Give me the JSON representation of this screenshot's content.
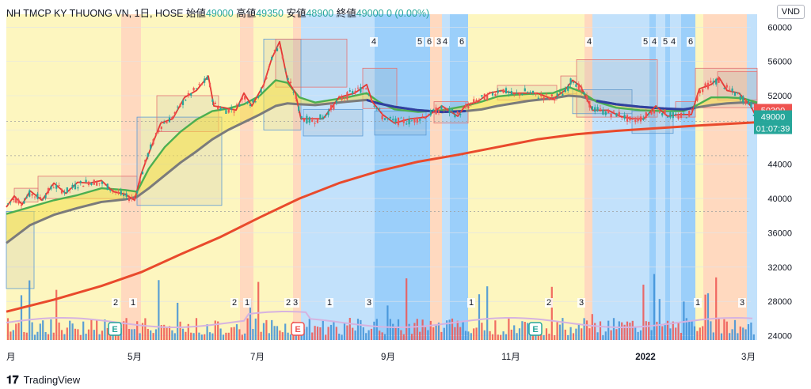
{
  "header": {
    "symbol": "NH TMCP KY THUONG VN, 1日, HOSE",
    "open_label": "始値",
    "open": "49000",
    "high_label": "高値",
    "high": "49350",
    "low_label": "安値",
    "low": "48900",
    "close_label": "終値",
    "close": "49000",
    "change": "0 (0.00%)"
  },
  "currency": "VND",
  "branding": "TradingView",
  "colors": {
    "up": "#26a69a",
    "down": "#ef5350",
    "yellow": "#fdf5b8",
    "blue": "#bbdefb",
    "blue_dark": "#90caf9",
    "orange": "#ffd5b8",
    "ema5": "#e53935",
    "ema20": "#4caf50",
    "ema50": "#2f3fa0",
    "ema200": "#e94a2c",
    "bb_label": "#ef5350",
    "price_label": "#26a69a"
  },
  "chart_data": {
    "type": "line",
    "title": "",
    "yaxis": {
      "ticks": [
        24000,
        28000,
        32000,
        36000,
        40000,
        44000,
        48000,
        52000,
        56000,
        60000
      ],
      "range": [
        23500,
        61500
      ]
    },
    "xaxis": {
      "ticks": [
        "月",
        "5月",
        "7月",
        "9月",
        "11月",
        "2022",
        "3月"
      ]
    },
    "price_labels": [
      {
        "text": "50300",
        "kind": "down"
      },
      {
        "text": "49000",
        "kind": "up"
      },
      {
        "text": "01:07:39",
        "kind": "up"
      }
    ],
    "series": [
      {
        "key": "price",
        "points": [
          [
            0,
            39200
          ],
          [
            10,
            40000
          ],
          [
            20,
            39500
          ],
          [
            30,
            40600
          ],
          [
            45,
            40000
          ],
          [
            60,
            41500
          ],
          [
            75,
            40800
          ],
          [
            90,
            41600
          ],
          [
            105,
            42000
          ],
          [
            120,
            41800
          ],
          [
            135,
            41000
          ],
          [
            150,
            40200
          ],
          [
            162,
            40000
          ],
          [
            170,
            42500
          ],
          [
            180,
            45500
          ],
          [
            195,
            48500
          ],
          [
            210,
            49500
          ],
          [
            225,
            51500
          ],
          [
            240,
            52800
          ],
          [
            255,
            54000
          ],
          [
            262,
            51000
          ],
          [
            275,
            50300
          ],
          [
            290,
            50500
          ],
          [
            300,
            52000
          ],
          [
            310,
            51000
          ],
          [
            325,
            53000
          ],
          [
            335,
            56500
          ],
          [
            345,
            58000
          ],
          [
            355,
            54000
          ],
          [
            365,
            52000
          ],
          [
            372,
            49500
          ],
          [
            385,
            49000
          ],
          [
            400,
            49500
          ],
          [
            420,
            51500
          ],
          [
            440,
            52500
          ],
          [
            455,
            53000
          ],
          [
            462,
            51500
          ],
          [
            475,
            49500
          ],
          [
            490,
            49000
          ],
          [
            510,
            49000
          ],
          [
            530,
            49700
          ],
          [
            550,
            50500
          ],
          [
            570,
            49800
          ],
          [
            580,
            50600
          ],
          [
            595,
            51500
          ],
          [
            610,
            52000
          ],
          [
            625,
            52800
          ],
          [
            640,
            52000
          ],
          [
            655,
            52500
          ],
          [
            670,
            52000
          ],
          [
            690,
            51800
          ],
          [
            705,
            52300
          ],
          [
            715,
            54000
          ],
          [
            725,
            52800
          ],
          [
            740,
            50500
          ],
          [
            760,
            50000
          ],
          [
            775,
            49800
          ],
          [
            790,
            49000
          ],
          [
            805,
            49500
          ],
          [
            820,
            50500
          ],
          [
            835,
            49800
          ],
          [
            850,
            49500
          ],
          [
            865,
            50000
          ],
          [
            875,
            52500
          ],
          [
            890,
            53500
          ],
          [
            900,
            53800
          ],
          [
            910,
            52800
          ],
          [
            925,
            52000
          ],
          [
            940,
            51000
          ],
          [
            948,
            49000
          ]
        ]
      },
      {
        "key": "ema20",
        "points": [
          [
            0,
            38200
          ],
          [
            30,
            39000
          ],
          [
            60,
            39800
          ],
          [
            90,
            40400
          ],
          [
            120,
            41200
          ],
          [
            150,
            41000
          ],
          [
            165,
            40800
          ],
          [
            180,
            43500
          ],
          [
            200,
            46000
          ],
          [
            220,
            47800
          ],
          [
            240,
            49200
          ],
          [
            260,
            50200
          ],
          [
            280,
            50500
          ],
          [
            300,
            51000
          ],
          [
            320,
            52000
          ],
          [
            340,
            53800
          ],
          [
            355,
            53500
          ],
          [
            370,
            51800
          ],
          [
            390,
            51200
          ],
          [
            410,
            51500
          ],
          [
            430,
            51800
          ],
          [
            455,
            52300
          ],
          [
            470,
            51300
          ],
          [
            490,
            50400
          ],
          [
            520,
            50100
          ],
          [
            550,
            50300
          ],
          [
            580,
            50800
          ],
          [
            600,
            51300
          ],
          [
            620,
            51900
          ],
          [
            640,
            52100
          ],
          [
            660,
            52200
          ],
          [
            690,
            52300
          ],
          [
            710,
            53000
          ],
          [
            725,
            52500
          ],
          [
            745,
            51300
          ],
          [
            770,
            50600
          ],
          [
            800,
            50300
          ],
          [
            830,
            50200
          ],
          [
            855,
            50200
          ],
          [
            870,
            50800
          ],
          [
            890,
            51800
          ],
          [
            910,
            51800
          ],
          [
            930,
            51700
          ],
          [
            948,
            51200
          ]
        ]
      },
      {
        "key": "ema50",
        "points": [
          [
            0,
            34800
          ],
          [
            30,
            36900
          ],
          [
            60,
            38100
          ],
          [
            90,
            38900
          ],
          [
            120,
            39600
          ],
          [
            150,
            39900
          ],
          [
            165,
            40200
          ],
          [
            180,
            41200
          ],
          [
            200,
            42700
          ],
          [
            220,
            44200
          ],
          [
            240,
            45500
          ],
          [
            260,
            46900
          ],
          [
            280,
            48000
          ],
          [
            300,
            48900
          ],
          [
            320,
            49800
          ],
          [
            340,
            50800
          ],
          [
            355,
            51100
          ],
          [
            370,
            51000
          ],
          [
            390,
            50900
          ],
          [
            410,
            51100
          ],
          [
            430,
            51300
          ],
          [
            455,
            51500
          ],
          [
            470,
            51100
          ],
          [
            490,
            50700
          ],
          [
            520,
            50300
          ],
          [
            550,
            50100
          ],
          [
            580,
            50200
          ],
          [
            600,
            50400
          ],
          [
            620,
            50800
          ],
          [
            640,
            51100
          ],
          [
            660,
            51400
          ],
          [
            690,
            51700
          ],
          [
            710,
            52000
          ],
          [
            725,
            51900
          ],
          [
            745,
            51400
          ],
          [
            770,
            51000
          ],
          [
            800,
            50700
          ],
          [
            830,
            50500
          ],
          [
            855,
            50400
          ],
          [
            870,
            50600
          ],
          [
            890,
            50900
          ],
          [
            910,
            51100
          ],
          [
            930,
            51200
          ],
          [
            948,
            51100
          ]
        ]
      },
      {
        "key": "ema200",
        "points": [
          [
            0,
            26800
          ],
          [
            60,
            28200
          ],
          [
            120,
            29800
          ],
          [
            170,
            31400
          ],
          [
            220,
            33500
          ],
          [
            270,
            35500
          ],
          [
            320,
            37800
          ],
          [
            370,
            40000
          ],
          [
            420,
            41800
          ],
          [
            470,
            43200
          ],
          [
            520,
            44300
          ],
          [
            570,
            45100
          ],
          [
            620,
            46000
          ],
          [
            670,
            46900
          ],
          [
            720,
            47500
          ],
          [
            770,
            47900
          ],
          [
            820,
            48200
          ],
          [
            870,
            48500
          ],
          [
            910,
            48700
          ],
          [
            948,
            48900
          ]
        ]
      }
    ]
  }
}
